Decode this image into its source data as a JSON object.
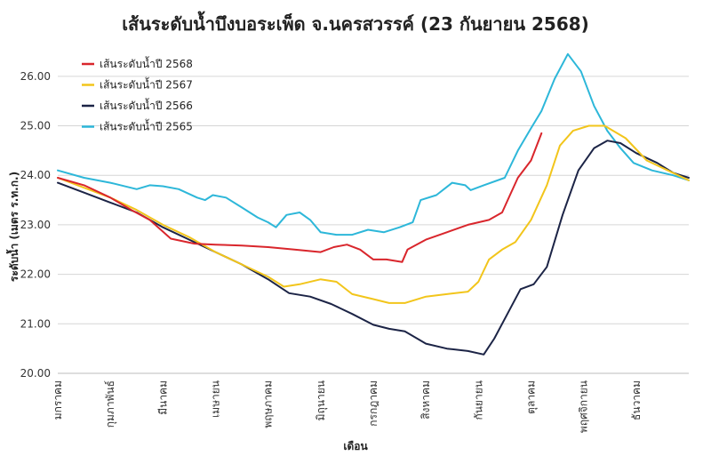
{
  "chart_data": {
    "type": "line",
    "title": "เส้นระดับน้ำบึงบอระเพ็ด จ.นครสวรรค์ (23 กันยายน 2568)",
    "xlabel": "เดือน",
    "ylabel": "ระดับน้ำ (เมตร ร.ท.ก.)",
    "ylim": [
      20.0,
      26.5
    ],
    "y_ticks": [
      "20.00",
      "21.00",
      "22.00",
      "23.00",
      "24.00",
      "25.00",
      "26.00"
    ],
    "categories": [
      "มกราคม",
      "กุมภาพันธ์",
      "มีนาคม",
      "เมษายน",
      "พฤษภาคม",
      "มิถุนายน",
      "กรกฎาคม",
      "สิงหาคม",
      "กันยายน",
      "ตุลาคม",
      "พฤศจิกายน",
      "ธันวาคม"
    ],
    "grid": true,
    "legend_position": "top-left",
    "x_unit": "month index (0 = มกราคม, 11 = ธันวาคม)",
    "series": [
      {
        "name": "เส้นระดับน้ำปี 2568",
        "color": "#d9262c",
        "points": [
          [
            0,
            23.95
          ],
          [
            0.5,
            23.8
          ],
          [
            1.0,
            23.55
          ],
          [
            1.4,
            23.3
          ],
          [
            1.75,
            23.1
          ],
          [
            2.15,
            22.72
          ],
          [
            2.6,
            22.62
          ],
          [
            3.0,
            22.6
          ],
          [
            3.5,
            22.58
          ],
          [
            4.0,
            22.55
          ],
          [
            4.5,
            22.5
          ],
          [
            5.0,
            22.45
          ],
          [
            5.25,
            22.55
          ],
          [
            5.5,
            22.6
          ],
          [
            5.75,
            22.5
          ],
          [
            6.0,
            22.3
          ],
          [
            6.25,
            22.3
          ],
          [
            6.55,
            22.25
          ],
          [
            6.65,
            22.5
          ],
          [
            7.0,
            22.7
          ],
          [
            7.4,
            22.85
          ],
          [
            7.8,
            23.0
          ],
          [
            8.2,
            23.1
          ],
          [
            8.45,
            23.25
          ],
          [
            8.6,
            23.6
          ],
          [
            8.75,
            23.95
          ],
          [
            9.0,
            24.3
          ],
          [
            9.2,
            24.85
          ]
        ]
      },
      {
        "name": "เส้นระดับน้ำปี 2567",
        "color": "#f2c51b",
        "points": [
          [
            0,
            23.95
          ],
          [
            0.5,
            23.75
          ],
          [
            1.0,
            23.55
          ],
          [
            1.5,
            23.3
          ],
          [
            2.0,
            23.0
          ],
          [
            2.5,
            22.75
          ],
          [
            3.0,
            22.45
          ],
          [
            3.5,
            22.2
          ],
          [
            4.0,
            21.95
          ],
          [
            4.3,
            21.75
          ],
          [
            4.6,
            21.8
          ],
          [
            5.0,
            21.9
          ],
          [
            5.3,
            21.85
          ],
          [
            5.6,
            21.6
          ],
          [
            6.0,
            21.5
          ],
          [
            6.3,
            21.42
          ],
          [
            6.6,
            21.42
          ],
          [
            7.0,
            21.55
          ],
          [
            7.4,
            21.6
          ],
          [
            7.8,
            21.65
          ],
          [
            8.0,
            21.85
          ],
          [
            8.2,
            22.3
          ],
          [
            8.45,
            22.5
          ],
          [
            8.7,
            22.65
          ],
          [
            9.0,
            23.1
          ],
          [
            9.3,
            23.8
          ],
          [
            9.55,
            24.6
          ],
          [
            9.8,
            24.9
          ],
          [
            10.1,
            25.0
          ],
          [
            10.4,
            25.0
          ],
          [
            10.8,
            24.75
          ],
          [
            11.2,
            24.3
          ],
          [
            11.6,
            24.1
          ],
          [
            12.0,
            23.9
          ]
        ]
      },
      {
        "name": "เส้นระดับน้ำปี 2566",
        "color": "#1c2446",
        "points": [
          [
            0,
            23.85
          ],
          [
            0.5,
            23.65
          ],
          [
            1.0,
            23.45
          ],
          [
            1.5,
            23.25
          ],
          [
            2.0,
            22.95
          ],
          [
            2.5,
            22.7
          ],
          [
            3.0,
            22.45
          ],
          [
            3.5,
            22.2
          ],
          [
            4.0,
            21.9
          ],
          [
            4.4,
            21.62
          ],
          [
            4.8,
            21.55
          ],
          [
            5.2,
            21.4
          ],
          [
            5.6,
            21.2
          ],
          [
            6.0,
            20.98
          ],
          [
            6.3,
            20.9
          ],
          [
            6.6,
            20.85
          ],
          [
            7.0,
            20.6
          ],
          [
            7.4,
            20.5
          ],
          [
            7.8,
            20.45
          ],
          [
            8.1,
            20.38
          ],
          [
            8.3,
            20.7
          ],
          [
            8.55,
            21.2
          ],
          [
            8.8,
            21.7
          ],
          [
            9.05,
            21.8
          ],
          [
            9.3,
            22.15
          ],
          [
            9.6,
            23.2
          ],
          [
            9.9,
            24.1
          ],
          [
            10.2,
            24.55
          ],
          [
            10.45,
            24.7
          ],
          [
            10.7,
            24.65
          ],
          [
            11.0,
            24.45
          ],
          [
            11.4,
            24.25
          ],
          [
            11.7,
            24.05
          ],
          [
            12.0,
            23.95
          ]
        ]
      },
      {
        "name": "เส้นระดับน้ำปี 2565",
        "color": "#2db7d9",
        "points": [
          [
            0,
            24.1
          ],
          [
            0.5,
            23.95
          ],
          [
            1.0,
            23.85
          ],
          [
            1.5,
            23.72
          ],
          [
            1.75,
            23.8
          ],
          [
            2.0,
            23.78
          ],
          [
            2.3,
            23.72
          ],
          [
            2.65,
            23.55
          ],
          [
            2.8,
            23.5
          ],
          [
            2.95,
            23.6
          ],
          [
            3.2,
            23.55
          ],
          [
            3.5,
            23.35
          ],
          [
            3.8,
            23.15
          ],
          [
            4.0,
            23.05
          ],
          [
            4.15,
            22.95
          ],
          [
            4.35,
            23.2
          ],
          [
            4.6,
            23.25
          ],
          [
            4.8,
            23.1
          ],
          [
            5.0,
            22.85
          ],
          [
            5.3,
            22.8
          ],
          [
            5.6,
            22.8
          ],
          [
            5.9,
            22.9
          ],
          [
            6.2,
            22.85
          ],
          [
            6.5,
            22.95
          ],
          [
            6.75,
            23.05
          ],
          [
            6.9,
            23.5
          ],
          [
            7.2,
            23.6
          ],
          [
            7.5,
            23.85
          ],
          [
            7.75,
            23.8
          ],
          [
            7.85,
            23.7
          ],
          [
            8.1,
            23.8
          ],
          [
            8.5,
            23.95
          ],
          [
            8.75,
            24.5
          ],
          [
            9.0,
            24.95
          ],
          [
            9.2,
            25.3
          ],
          [
            9.45,
            25.95
          ],
          [
            9.7,
            26.45
          ],
          [
            9.95,
            26.1
          ],
          [
            10.2,
            25.4
          ],
          [
            10.45,
            24.9
          ],
          [
            10.7,
            24.55
          ],
          [
            10.95,
            24.25
          ],
          [
            11.3,
            24.1
          ],
          [
            11.7,
            24.0
          ],
          [
            12.0,
            23.9
          ]
        ]
      }
    ]
  }
}
